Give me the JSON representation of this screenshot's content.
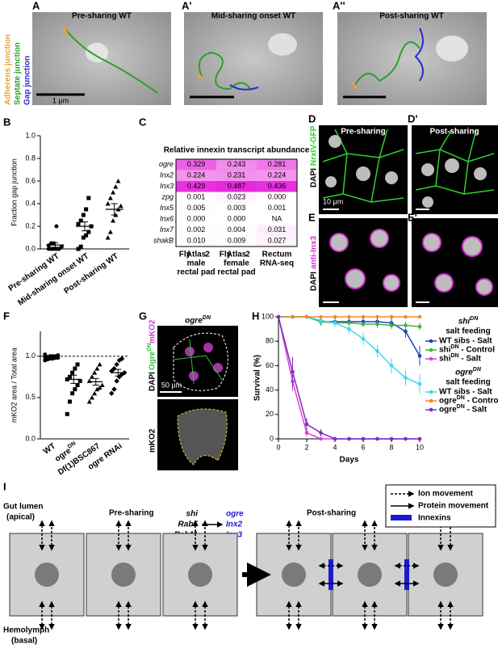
{
  "panel_labels": [
    "A",
    "A'",
    "A''",
    "B",
    "C",
    "D",
    "D'",
    "E",
    "E'",
    "F",
    "G",
    "H",
    "I"
  ],
  "panel_a": {
    "titles": [
      "Pre-sharing WT",
      "Mid-sharing onset WT",
      "Post-sharing WT"
    ],
    "scale_bar": "1 μm",
    "junction_legend": [
      {
        "name": "Adherens junction",
        "color": "#e8a33a"
      },
      {
        "name": "Septate junction",
        "color": "#2ca02c"
      },
      {
        "name": "Gap junction",
        "color": "#2b2bd0"
      }
    ]
  },
  "panel_d": {
    "titles": [
      "Pre-sharing",
      "Post-sharing"
    ],
    "stain": [
      "DAPI",
      "NrxIV-GFP"
    ],
    "scale_bar": "10 μm"
  },
  "panel_e": {
    "stain": [
      "DAPI",
      "anti-Inx3"
    ]
  },
  "panel_g": {
    "title": "ogreDN",
    "stain_top": [
      "DAPI",
      "OgreDN",
      "mKO2"
    ],
    "scale_bar": "50 μm",
    "stain_bottom": "mKO2"
  },
  "table_c": {
    "title": "Relative innexin transcript abundance",
    "columns": [
      [
        "Fly",
        "Atlas",
        "2",
        "male",
        "rectal pad"
      ],
      [
        "Fly",
        "Atlas",
        "2",
        "female",
        "rectal pad"
      ],
      [
        "Rectum",
        "RNA-seq"
      ]
    ],
    "rows": [
      {
        "gene": "ogre",
        "values": [
          "0.329",
          "0.243",
          "0.281"
        ]
      },
      {
        "gene": "Inx2",
        "values": [
          "0.224",
          "0.231",
          "0.224"
        ]
      },
      {
        "gene": "Inx3",
        "values": [
          "0.429",
          "0.487",
          "0.436"
        ]
      },
      {
        "gene": "zpg",
        "values": [
          "0.001",
          "0.023",
          "0.000"
        ]
      },
      {
        "gene": "Inx5",
        "values": [
          "0.005",
          "0.003",
          "0.001"
        ]
      },
      {
        "gene": "Inx6",
        "values": [
          "0.000",
          "0.000",
          "NA"
        ]
      },
      {
        "gene": "Inx7",
        "values": [
          "0.002",
          "0.004",
          "0.031"
        ]
      },
      {
        "gene": "shakB",
        "values": [
          "0.010",
          "0.009",
          "0.027"
        ]
      }
    ]
  },
  "chart_data": [
    {
      "type": "strip",
      "ylabel": "Fraction gap junction",
      "categories": [
        "Pre-sharing WT",
        "Mid-sharing onset WT",
        "Post-sharing WT"
      ],
      "markers": [
        "circle",
        "square",
        "triangle"
      ],
      "values": [
        [
          0,
          0,
          0,
          0,
          0,
          0.02,
          0.03,
          0.05,
          0.05,
          0.2
        ],
        [
          0,
          0.02,
          0.1,
          0.12,
          0.15,
          0.2,
          0.22,
          0.25,
          0.3,
          0.35,
          0.45
        ],
        [
          0.1,
          0.15,
          0.25,
          0.3,
          0.35,
          0.38,
          0.4,
          0.45,
          0.5,
          0.55,
          0.6
        ]
      ],
      "means": [
        0.035,
        0.2,
        0.35
      ],
      "errors": [
        0.02,
        0.04,
        0.05
      ],
      "ylim": [
        0,
        1
      ],
      "yticks": [
        {
          "value": 0,
          "label": "0.0"
        },
        {
          "value": 0.2,
          "label": "0.2"
        },
        {
          "value": 0.4,
          "label": "0.4"
        },
        {
          "value": 0.6,
          "label": "0.6"
        },
        {
          "value": 0.8,
          "label": "0.8"
        },
        {
          "value": 1,
          "label": "1.0"
        }
      ]
    },
    {
      "type": "strip",
      "ylabel": "mKO2 area / Total area",
      "categories": [
        "WT",
        "ogreDN",
        "Df(1)BSC867",
        "ogre RNAi"
      ],
      "markers": [
        "circle",
        "square",
        "triangle",
        "diamond"
      ],
      "values": [
        [
          0.95,
          0.96,
          0.97,
          0.97,
          0.98,
          0.98,
          0.99,
          0.99,
          1.0,
          1.0,
          1.0,
          1.01,
          1.02
        ],
        [
          0.3,
          0.45,
          0.55,
          0.6,
          0.65,
          0.7,
          0.72,
          0.75,
          0.8,
          0.85,
          0.9
        ],
        [
          0.45,
          0.5,
          0.55,
          0.6,
          0.62,
          0.65,
          0.7,
          0.75,
          0.8,
          0.85,
          0.9
        ],
        [
          0.55,
          0.6,
          0.7,
          0.75,
          0.78,
          0.8,
          0.82,
          0.85,
          0.9,
          0.95,
          0.97
        ]
      ],
      "means": [
        0.98,
        0.72,
        0.69,
        0.8
      ],
      "errors": [
        0.01,
        0.05,
        0.04,
        0.04
      ],
      "reference_line": 1,
      "ylim": [
        0,
        1.3
      ],
      "yticks": [
        {
          "value": 0,
          "label": "0.0"
        },
        {
          "value": 0.5,
          "label": "0.5"
        },
        {
          "value": 1,
          "label": "1.0"
        }
      ]
    },
    {
      "type": "line",
      "xlabel": "Days",
      "ylabel": "Survival (%)",
      "x": [
        0,
        1,
        2,
        3,
        4,
        5,
        6,
        7,
        8,
        9,
        10
      ],
      "xlim": [
        0,
        10
      ],
      "xticks": [
        0,
        2,
        4,
        6,
        8,
        10
      ],
      "ylim": [
        0,
        100
      ],
      "yticks": [
        0,
        20,
        40,
        60,
        80,
        100
      ],
      "groups": [
        {
          "title": "shiDN",
          "subtitle": "salt feeding",
          "series": [
            {
              "name": "WT sibs - Salt",
              "color": "#1f3fbf",
              "values": [
                100,
                100,
                100,
                96,
                96,
                96,
                96,
                96,
                95,
                88,
                68
              ],
              "errors": [
                0,
                0,
                0,
                3,
                3,
                3,
                3,
                3,
                4,
                5,
                8
              ]
            },
            {
              "name": "shiDN - Control",
              "color": "#3cb43c",
              "values": [
                100,
                100,
                100,
                96,
                95,
                95,
                94,
                94,
                93,
                93,
                92
              ],
              "errors": [
                0,
                0,
                0,
                2,
                2,
                2,
                2,
                3,
                3,
                3,
                3
              ]
            },
            {
              "name": "shiDN - Salt",
              "color": "#e040d0",
              "values": [
                100,
                47,
                5,
                0,
                0,
                0,
                0,
                0,
                0,
                0,
                0
              ],
              "errors": [
                0,
                8,
                3,
                0,
                0,
                0,
                0,
                0,
                0,
                0,
                0
              ]
            }
          ]
        },
        {
          "title": "ogreDN",
          "subtitle": "salt feeding",
          "series": [
            {
              "name": "WT sibs - Salt",
              "color": "#40d8e8",
              "values": [
                100,
                100,
                100,
                97,
                95,
                90,
                82,
                72,
                60,
                50,
                45
              ],
              "errors": [
                0,
                0,
                0,
                2,
                3,
                4,
                5,
                5,
                6,
                6,
                8
              ]
            },
            {
              "name": "ogreDN - Control",
              "color": "#f08c28",
              "values": [
                100,
                100,
                100,
                100,
                100,
                100,
                100,
                100,
                100,
                100,
                100
              ],
              "errors": [
                0,
                0,
                0,
                0,
                0,
                0,
                0,
                0,
                0,
                0,
                0
              ]
            },
            {
              "name": "ogreDN - Salt",
              "color": "#7a2fc0",
              "values": [
                100,
                55,
                12,
                5,
                0,
                0,
                0,
                0,
                0,
                0,
                0
              ],
              "errors": [
                0,
                12,
                5,
                3,
                0,
                0,
                0,
                0,
                0,
                0,
                0
              ]
            }
          ]
        }
      ]
    }
  ],
  "diagram_i": {
    "lumen": [
      "Gut lumen",
      "(apical)"
    ],
    "hemolymph": [
      "Hemolymph",
      "(basal)"
    ],
    "pre": "Pre-sharing",
    "post": "Post-sharing",
    "regulators": [
      "shi",
      "Rab5",
      "Rab11"
    ],
    "innexins": [
      "ogre",
      "Inx2",
      "Inx3"
    ],
    "legend": [
      "Ion movement",
      "Protein movement",
      "Innexins"
    ]
  }
}
